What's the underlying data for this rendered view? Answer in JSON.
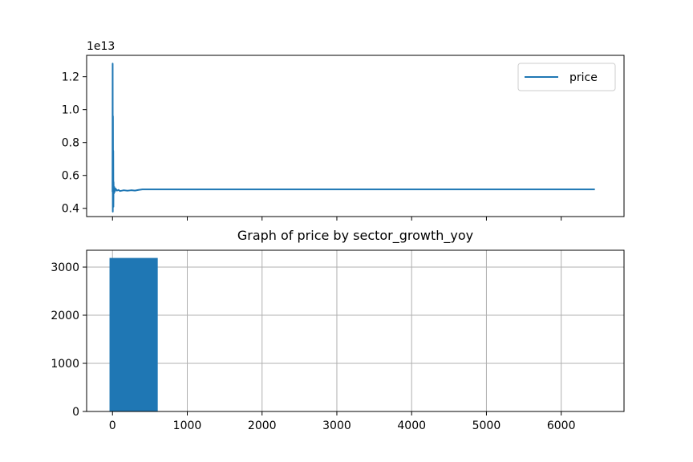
{
  "chart_data": [
    {
      "type": "line",
      "title": "",
      "offset_text": "1e13",
      "ylim": [
        0.35,
        1.33
      ],
      "xlim": [
        -346,
        6840
      ],
      "x_ticks": [
        0,
        1000,
        2000,
        3000,
        4000,
        5000,
        6000
      ],
      "x_tick_labels_visible": false,
      "y_ticks": [
        0.4,
        0.6,
        0.8,
        1.0,
        1.2
      ],
      "y_tick_labels": [
        "0.4",
        "0.6",
        "0.8",
        "1.0",
        "1.2"
      ],
      "grid": false,
      "legend": {
        "placement": "top-right",
        "entries": [
          "price"
        ]
      },
      "series": [
        {
          "name": "price",
          "color": "#1f77b4",
          "x": [
            0,
            2,
            4,
            6,
            8,
            10,
            12,
            14,
            18,
            24,
            30,
            40,
            60,
            80,
            100,
            150,
            200,
            250,
            300,
            350,
            400,
            600,
            1000,
            2000,
            3000,
            4000,
            5000,
            6000,
            6450
          ],
          "y": [
            5.0,
            12.8,
            3.8,
            9.6,
            4.4,
            7.5,
            4.1,
            5.6,
            4.9,
            5.3,
            5.0,
            5.2,
            5.08,
            5.12,
            5.05,
            5.1,
            5.07,
            5.1,
            5.08,
            5.12,
            5.15,
            5.15,
            5.15,
            5.15,
            5.15,
            5.15,
            5.15,
            5.15,
            5.15
          ]
        }
      ]
    },
    {
      "type": "bar",
      "title": "Graph of price by sector_growth_yoy",
      "xlim": [
        -346,
        6840
      ],
      "ylim": [
        0,
        3350
      ],
      "x_ticks": [
        0,
        1000,
        2000,
        3000,
        4000,
        5000,
        6000
      ],
      "x_tick_labels": [
        "0",
        "1000",
        "2000",
        "3000",
        "4000",
        "5000",
        "6000"
      ],
      "y_ticks": [
        0,
        1000,
        2000,
        3000
      ],
      "y_tick_labels": [
        "0",
        "1000",
        "2000",
        "3000"
      ],
      "grid": true,
      "bins": [
        {
          "x0": -40,
          "x1": 605,
          "value": 3190,
          "color": "#1f77b4"
        }
      ]
    }
  ]
}
